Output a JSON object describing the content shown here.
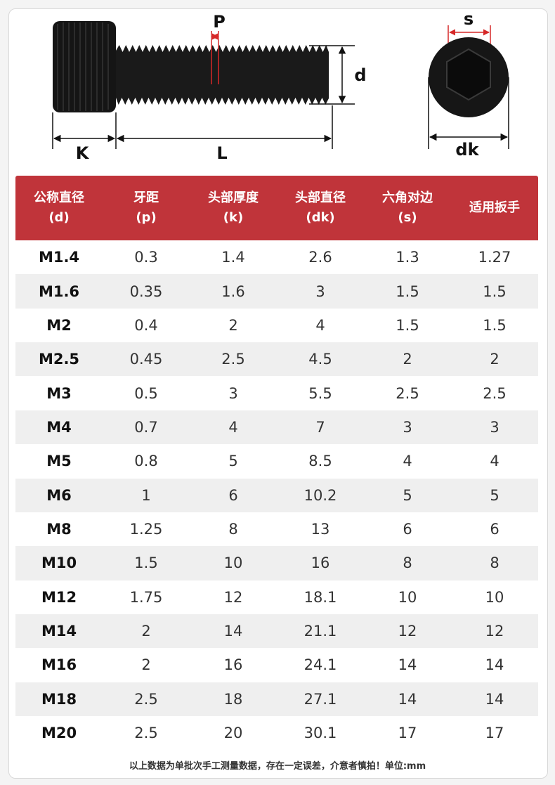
{
  "diagram": {
    "labels": {
      "p": "P",
      "d": "d",
      "k": "K",
      "l": "L",
      "s": "s",
      "dk": "dk"
    }
  },
  "table": {
    "header": [
      {
        "name": "公称直径",
        "symbol": "(d)"
      },
      {
        "name": "牙距",
        "symbol": "(p)"
      },
      {
        "name": "头部厚度",
        "symbol": "(k)"
      },
      {
        "name": "头部直径",
        "symbol": "(dk)"
      },
      {
        "name": "六角对边",
        "symbol": "(s)"
      },
      {
        "name": "适用扳手"
      }
    ],
    "rows": [
      [
        "M1.4",
        "0.3",
        "1.4",
        "2.6",
        "1.3",
        "1.27"
      ],
      [
        "M1.6",
        "0.35",
        "1.6",
        "3",
        "1.5",
        "1.5"
      ],
      [
        "M2",
        "0.4",
        "2",
        "4",
        "1.5",
        "1.5"
      ],
      [
        "M2.5",
        "0.45",
        "2.5",
        "4.5",
        "2",
        "2"
      ],
      [
        "M3",
        "0.5",
        "3",
        "5.5",
        "2.5",
        "2.5"
      ],
      [
        "M4",
        "0.7",
        "4",
        "7",
        "3",
        "3"
      ],
      [
        "M5",
        "0.8",
        "5",
        "8.5",
        "4",
        "4"
      ],
      [
        "M6",
        "1",
        "6",
        "10.2",
        "5",
        "5"
      ],
      [
        "M8",
        "1.25",
        "8",
        "13",
        "6",
        "6"
      ],
      [
        "M10",
        "1.5",
        "10",
        "16",
        "8",
        "8"
      ],
      [
        "M12",
        "1.75",
        "12",
        "18.1",
        "10",
        "10"
      ],
      [
        "M14",
        "2",
        "14",
        "21.1",
        "12",
        "12"
      ],
      [
        "M16",
        "2",
        "16",
        "24.1",
        "14",
        "14"
      ],
      [
        "M18",
        "2.5",
        "18",
        "27.1",
        "14",
        "14"
      ],
      [
        "M20",
        "2.5",
        "20",
        "30.1",
        "17",
        "17"
      ]
    ]
  },
  "footer": {
    "note": "以上数据为单批次手工测量数据，存在一定误差，介意者慎拍！单位:mm"
  }
}
